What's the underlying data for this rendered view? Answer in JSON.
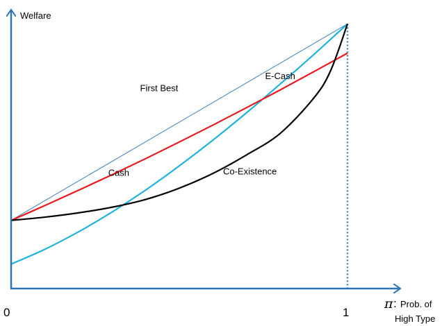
{
  "chart_data": {
    "type": "line",
    "ylabel": "Welfare",
    "xlabel_symbol": "π",
    "xlabel_colon": ":",
    "xlabel_line1": "Prob. of",
    "xlabel_line2": "High Type",
    "x_ticks": [
      "0",
      "1"
    ],
    "xlim": [
      0,
      1
    ],
    "ylim": [
      0,
      1
    ],
    "grid": false,
    "series": [
      {
        "name": "First Best",
        "color": "#3d7fb8",
        "x": [
          0,
          1
        ],
        "y": [
          0.254,
          0.986
        ]
      },
      {
        "name": "E-Cash",
        "color": "#1fb2dc",
        "x": [
          0,
          0.1,
          0.2,
          0.3,
          0.4,
          0.5,
          0.6,
          0.7,
          0.8,
          0.9,
          1
        ],
        "y": [
          0.091,
          0.146,
          0.211,
          0.285,
          0.367,
          0.457,
          0.553,
          0.655,
          0.762,
          0.872,
          0.986
        ]
      },
      {
        "name": "Cash",
        "color": "#e8191e",
        "x": [
          0,
          0.1,
          0.2,
          0.3,
          0.4,
          0.5,
          0.6,
          0.7,
          0.8,
          0.9,
          1
        ],
        "y": [
          0.254,
          0.309,
          0.366,
          0.424,
          0.484,
          0.546,
          0.609,
          0.674,
          0.74,
          0.808,
          0.877
        ]
      },
      {
        "name": "Co-Existence",
        "color": "#000000",
        "x": [
          0,
          0.1,
          0.2,
          0.3,
          0.4,
          0.5,
          0.6,
          0.7,
          0.8,
          0.9,
          0.95,
          1
        ],
        "y": [
          0.254,
          0.266,
          0.282,
          0.303,
          0.332,
          0.374,
          0.429,
          0.498,
          0.578,
          0.71,
          0.812,
          0.986
        ]
      }
    ],
    "annotations": [
      {
        "text": "First Best",
        "x": 0.44,
        "y": 0.735
      },
      {
        "text": "E-Cash",
        "x": 0.8,
        "y": 0.78
      },
      {
        "text": "Cash",
        "x": 0.32,
        "y": 0.42
      },
      {
        "text": "Co-Existence",
        "x": 0.71,
        "y": 0.425
      }
    ],
    "reference_line": {
      "style": "dotted",
      "x": 1,
      "color": "#3d7fb8"
    }
  }
}
